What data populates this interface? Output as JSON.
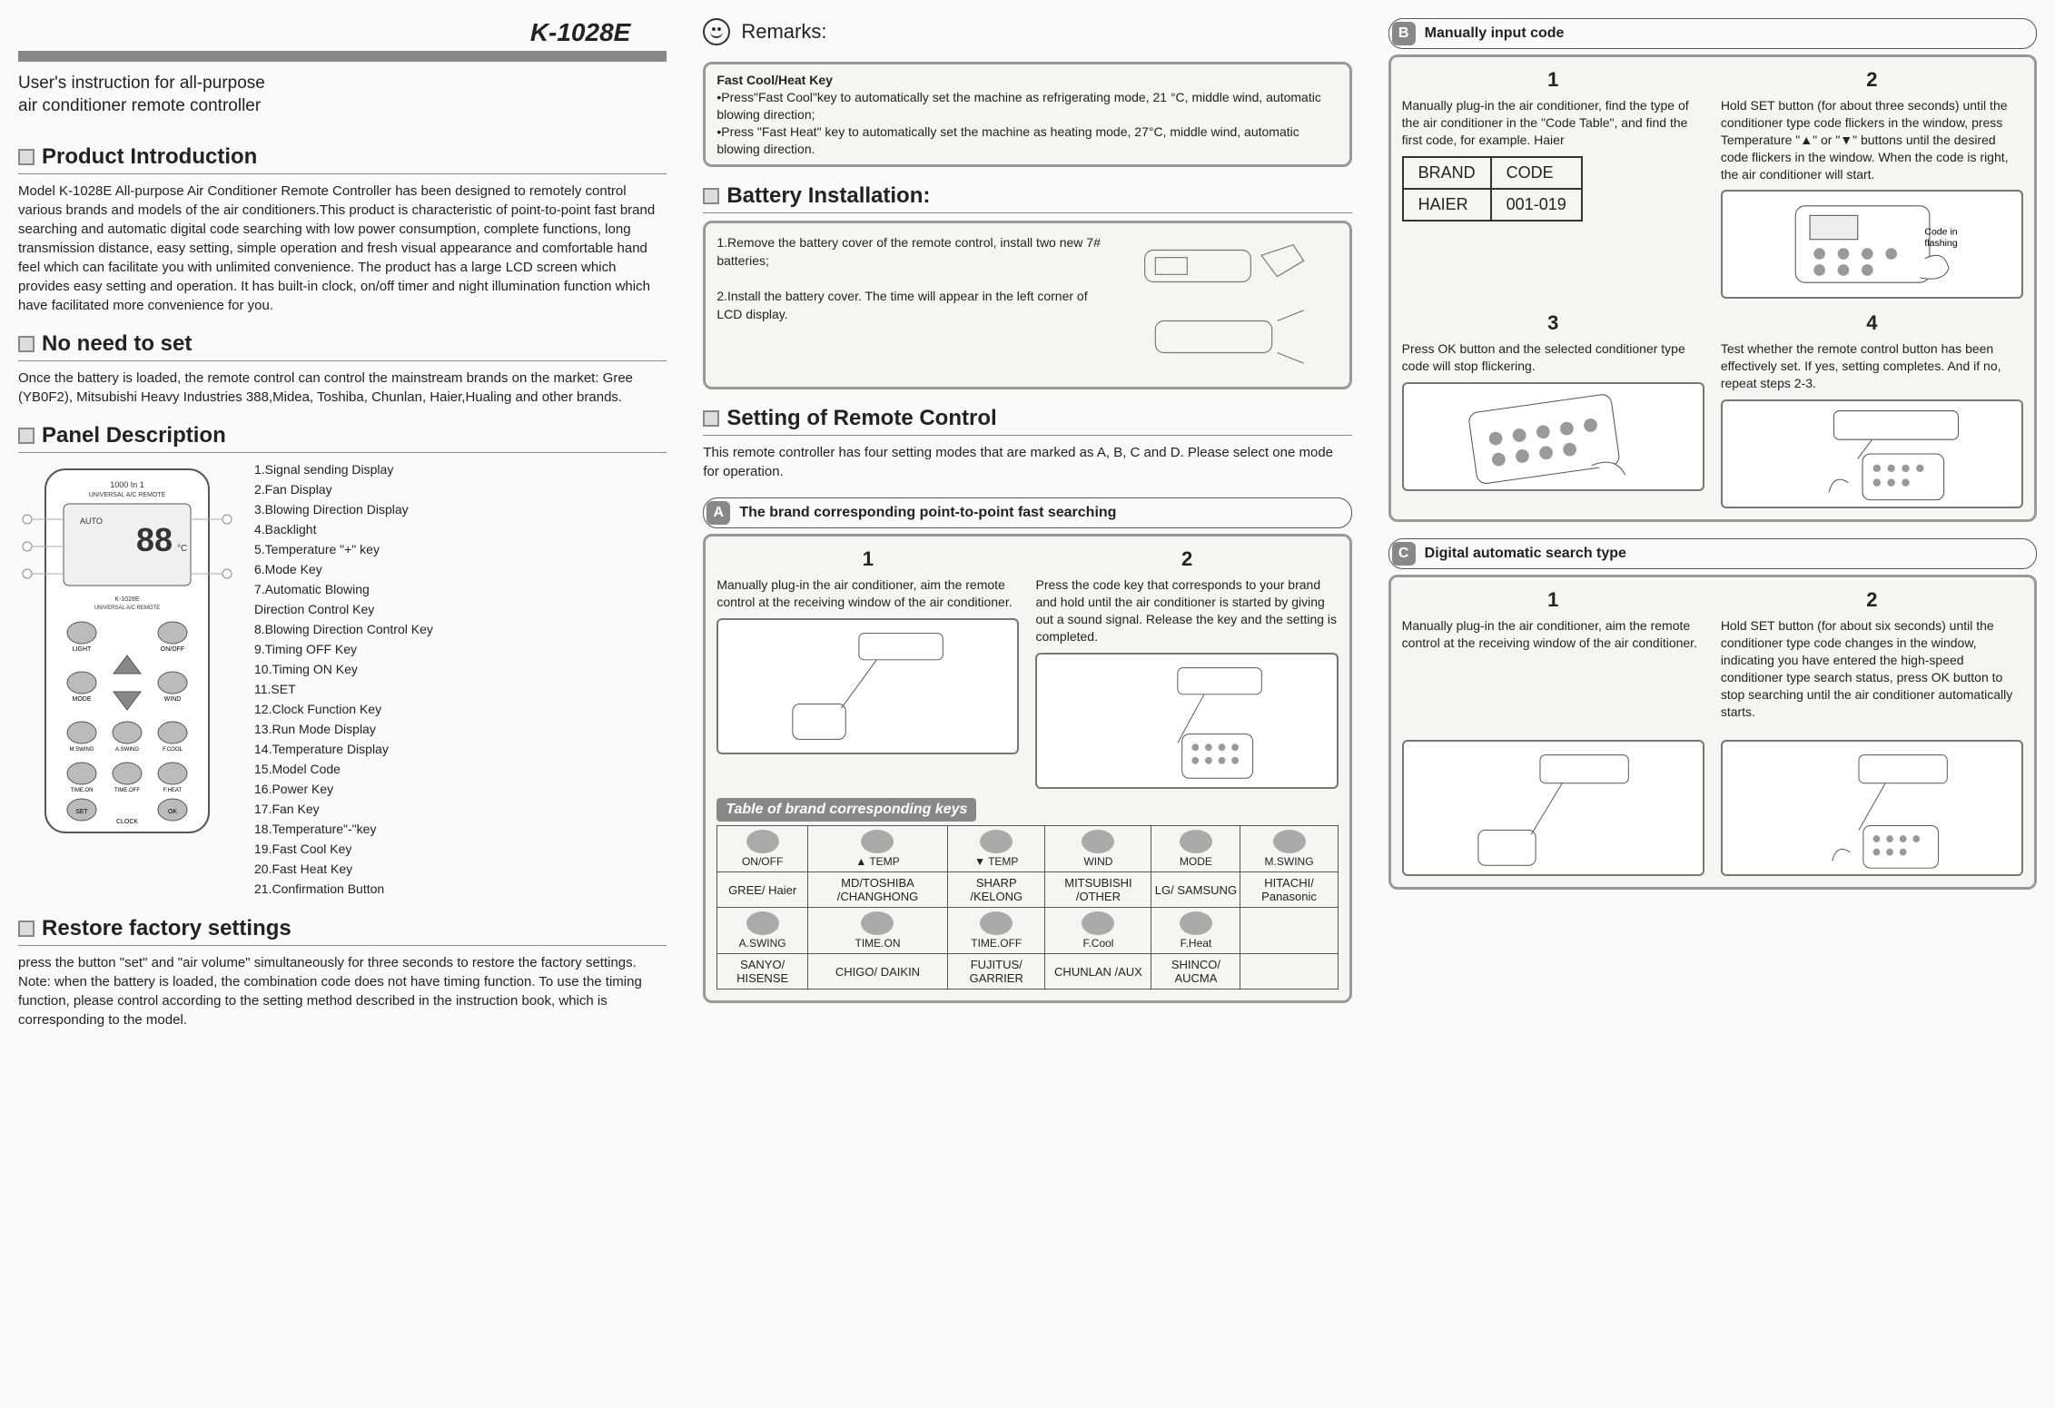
{
  "model": "K-1028E",
  "subtitle": "User's instruction for all-purpose\nair conditioner remote controller",
  "sections": {
    "product_intro": {
      "title": "Product Introduction",
      "body": "Model K-1028E All-purpose Air Conditioner Remote Controller has been designed to remotely control various brands and models of the air conditioners.This product is characteristic of point-to-point fast brand searching and automatic digital code searching with low power consumption, complete functions, long transmission distance, easy setting, simple operation and fresh visual appearance and comfortable hand feel which can facilitate you with unlimited convenience. The product has a large LCD screen which provides easy setting and operation. It has built-in clock, on/off timer and night illumination function which have facilitated more convenience for you."
    },
    "no_need": {
      "title": "No need to set",
      "body": "Once the battery is loaded, the remote control can control the mainstream brands on the market: Gree (YB0F2), Mitsubishi Heavy Industries 388,Midea, Toshiba, Chunlan, Haier,Hualing and other brands."
    },
    "panel": {
      "title": "Panel Description",
      "items": [
        "1.Signal sending Display",
        "2.Fan Display",
        "3.Blowing Direction Display",
        "4.Backlight",
        "5.Temperature \"+\" key",
        "6.Mode Key",
        "7.Automatic Blowing",
        "   Direction Control Key",
        "8.Blowing Direction Control Key",
        "9.Timing OFF Key",
        "10.Timing ON Key",
        "11.SET",
        "12.Clock Function Key",
        "13.Run Mode Display",
        "14.Temperature Display",
        "15.Model Code",
        "16.Power Key",
        "17.Fan Key",
        "18.Temperature\"-\"key",
        "19.Fast Cool Key",
        "20.Fast Heat Key",
        "21.Confirmation Button"
      ]
    },
    "restore": {
      "title": "Restore factory settings",
      "body": "press the button \"set\" and \"air volume\" simultaneously for three seconds to restore the factory settings.\nNote: when the battery is loaded, the combination code does not have timing function. To use the timing function, please control according to the setting method described in the instruction book, which is corresponding to the model."
    },
    "remarks": {
      "title": "Remarks:",
      "fast_title": "Fast Cool/Heat Key",
      "line1": "•Press\"Fast Cool\"key to automatically set the machine as refrigerating mode, 21 °C, middle wind, automatic blowing direction;",
      "line2": "•Press \"Fast Heat\" key to automatically set the machine as heating mode, 27°C, middle wind, automatic blowing direction."
    },
    "battery": {
      "title": "Battery Installation:",
      "step1": "1.Remove the battery cover of the remote control, install two new 7# batteries;",
      "step2": "2.Install the battery cover. The time will appear in the left corner of LCD display."
    },
    "setting": {
      "title": "Setting of Remote Control",
      "intro": "This remote controller has four setting modes that are marked as A, B, C and D. Please select one mode for operation."
    },
    "modeA": {
      "letter": "A",
      "label": "The brand corresponding point-to-point fast searching",
      "step1": "Manually plug-in the air conditioner, aim the remote control at the receiving window of the air conditioner.",
      "step2": "Press the code key that corresponds to your brand and hold until the air conditioner is started by giving out a sound signal. Release the key and the setting is completed.",
      "table_title": "Table of brand corresponding keys",
      "keys": [
        {
          "btn": "ON/OFF",
          "brands": "GREE/ Haier"
        },
        {
          "btn": "▲ TEMP",
          "brands": "MD/TOSHIBA /CHANGHONG"
        },
        {
          "btn": "▼ TEMP",
          "brands": "SHARP /KELONG"
        },
        {
          "btn": "WIND",
          "brands": "MITSUBISHI /OTHER"
        },
        {
          "btn": "MODE",
          "brands": "LG/ SAMSUNG"
        },
        {
          "btn": "M.SWING",
          "brands": "HITACHI/ Panasonic"
        },
        {
          "btn": "A.SWING",
          "brands": "SANYO/ HISENSE"
        },
        {
          "btn": "TIME.ON",
          "brands": "CHIGO/ DAIKIN"
        },
        {
          "btn": "TIME.OFF",
          "brands": "FUJITUS/ GARRIER"
        },
        {
          "btn": "F.Cool",
          "brands": "CHUNLAN /AUX"
        },
        {
          "btn": "F.Heat",
          "brands": "SHINCO/ AUCMA"
        }
      ]
    },
    "modeB": {
      "letter": "B",
      "label": "Manually input code",
      "step1": "Manually plug-in the air conditioner, find the type of the air conditioner in the \"Code Table\", and find the first code, for example. Haier",
      "step2": "Hold SET button (for about three seconds) until the conditioner type code flickers in the window, press Temperature \"▲\" or \"▼\" buttons until the desired code flickers in the window. When the code is right, the air conditioner will start.",
      "step3": "Press OK button and the selected conditioner type code will stop flickering.",
      "step4": "Test whether the remote control button has been effectively set. If yes, setting completes. And if no, repeat steps 2-3.",
      "code_table": {
        "h1": "BRAND",
        "h2": "CODE",
        "r1": "HAIER",
        "r2": "001-019"
      },
      "flash_label": "Code in flashing"
    },
    "modeC": {
      "letter": "C",
      "label": "Digital automatic search type",
      "step1": "Manually plug-in the air conditioner, aim the remote control at the receiving window of the air conditioner.",
      "step2": "Hold SET button (for about six seconds) until the conditioner type code changes in the window, indicating you have entered the high-speed conditioner type search status, press OK button to stop searching until the air conditioner automatically starts."
    }
  },
  "colors": {
    "frame": "#999999",
    "bar": "#888888",
    "bg": "#fafaf8",
    "text": "#222222"
  }
}
